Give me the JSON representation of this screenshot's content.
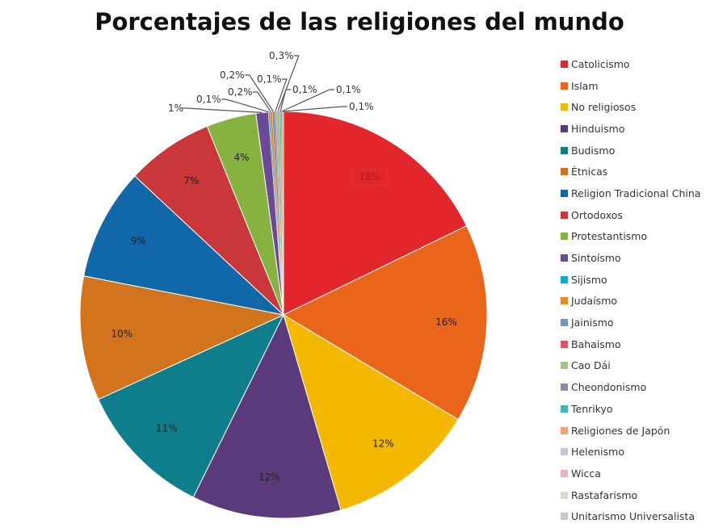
{
  "chart_data": {
    "type": "pie",
    "title": "Porcentajes de las religiones del mundo",
    "start": "top",
    "direction": "clockwise",
    "legend_position": "right",
    "slices": [
      {
        "name": "Catolicismo",
        "value": 18,
        "label": "18%",
        "color": "#e3262b"
      },
      {
        "name": "Islam",
        "value": 16,
        "label": "16%",
        "color": "#e8651a"
      },
      {
        "name": "No religiosos",
        "value": 12,
        "label": "12%",
        "color": "#f5b800"
      },
      {
        "name": "Hinduismo",
        "value": 12,
        "label": "12%",
        "color": "#5b3a7c"
      },
      {
        "name": "Budismo",
        "value": 11,
        "label": "11%",
        "color": "#0f7e8c"
      },
      {
        "name": "Étnicas",
        "value": 10,
        "label": "10%",
        "color": "#d2741d"
      },
      {
        "name": "Religion Tradicional China",
        "value": 9,
        "label": "9%",
        "color": "#1068a8"
      },
      {
        "name": "Ortodoxos",
        "value": 7,
        "label": "7%",
        "color": "#c9373a"
      },
      {
        "name": "Protestantismo",
        "value": 4,
        "label": "4%",
        "color": "#86b340"
      },
      {
        "name": "Sintoísmo",
        "value": 1,
        "label": "1%",
        "color": "#6a4a96"
      },
      {
        "name": "Sijismo",
        "value": 0.1,
        "label": "0,1%",
        "color": "#1aa9c4"
      },
      {
        "name": "Judaísmo",
        "value": 0.2,
        "label": "0,2%",
        "color": "#e8892a"
      },
      {
        "name": "Jainismo",
        "value": 0.2,
        "label": "0,2%",
        "color": "#6f94c4"
      },
      {
        "name": "Bahaismo",
        "value": 0.1,
        "label": "0,1%",
        "color": "#d9566e"
      },
      {
        "name": "Cao Dái",
        "value": 0.3,
        "label": "0,3%",
        "color": "#a4c48c"
      },
      {
        "name": "Cheondonismo",
        "value": 0.1,
        "label": "0,1%",
        "color": "#8a8aa4"
      },
      {
        "name": "Tenrikyo",
        "value": 0.1,
        "label": "0,1%",
        "color": "#3db8c0"
      },
      {
        "name": "Religiones de Japón",
        "value": 0.1,
        "label": "0,1%",
        "color": "#f4a070"
      },
      {
        "name": "Helenismo",
        "value": null,
        "label": "",
        "color": "#c4c8d4"
      },
      {
        "name": "Wicca",
        "value": null,
        "label": "",
        "color": "#e8b4bc"
      },
      {
        "name": "Rastafarismo",
        "value": null,
        "label": "",
        "color": "#d8d8cc"
      },
      {
        "name": "Unitarismo Universalista",
        "value": null,
        "label": "",
        "color": "#c8c8cc"
      }
    ]
  }
}
